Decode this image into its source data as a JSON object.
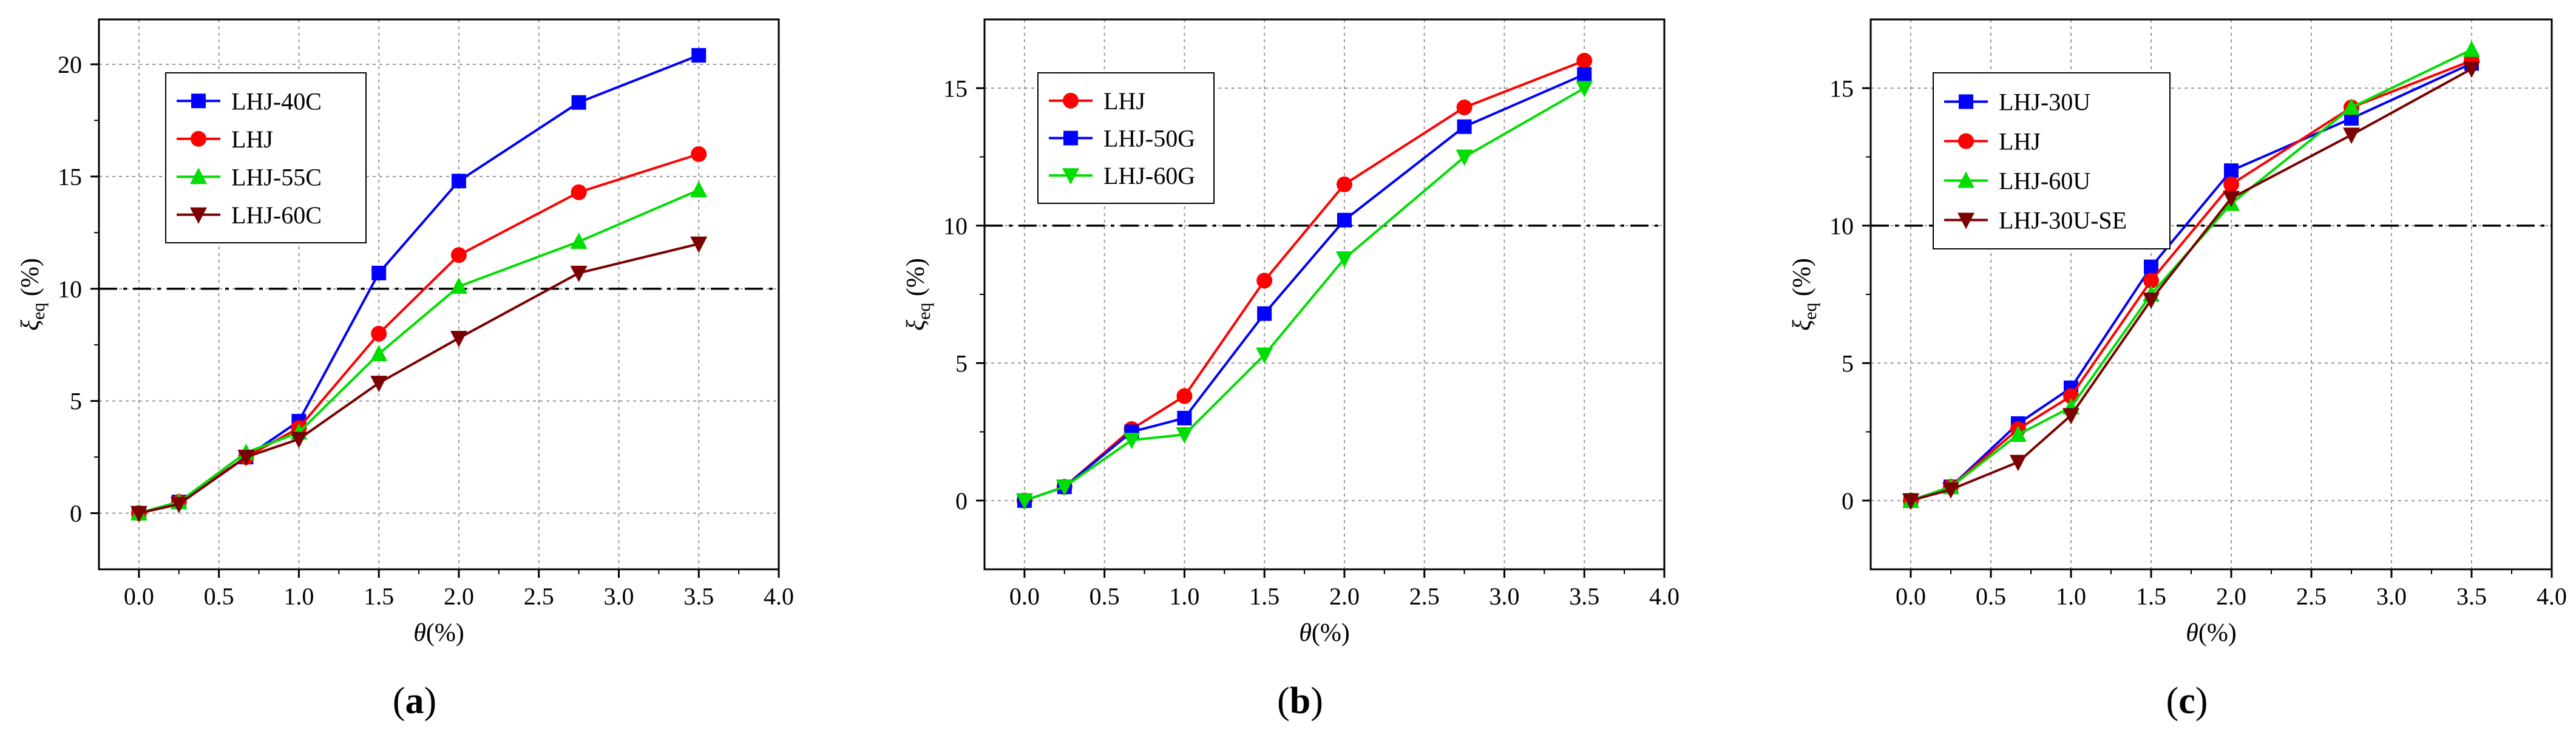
{
  "chart_data": [
    {
      "type": "line",
      "panel_label": "a",
      "xlabel": "θ(%)",
      "ylabel": "ξeq (%)",
      "xlim": [
        -0.25,
        4.0
      ],
      "ylim": [
        -2.5,
        22.0
      ],
      "xticks": [
        "0.0",
        "0.5",
        "1.0",
        "1.5",
        "2.0",
        "2.5",
        "3.0",
        "3.5",
        "4.0"
      ],
      "xtick_values": [
        0,
        0.5,
        1.0,
        1.5,
        2.0,
        2.5,
        3.0,
        3.5,
        4.0
      ],
      "yticks": [
        "0",
        "5",
        "10",
        "15",
        "20"
      ],
      "ytick_values": [
        0,
        5,
        10,
        15,
        20
      ],
      "grid": true,
      "reference_line": 10,
      "legend_position": "top-left",
      "x": [
        0.0,
        0.25,
        0.67,
        1.0,
        1.5,
        2.0,
        2.75,
        3.5
      ],
      "series": [
        {
          "name": "LHJ-40C",
          "color": "#0000ff",
          "marker": "square",
          "values": [
            0.0,
            0.5,
            2.5,
            4.1,
            10.7,
            14.8,
            18.3,
            20.4
          ]
        },
        {
          "name": "LHJ",
          "color": "#ff0000",
          "marker": "circle",
          "values": [
            0.0,
            0.5,
            2.5,
            3.8,
            8.0,
            11.5,
            14.3,
            16.0
          ]
        },
        {
          "name": "LHJ-55C",
          "color": "#00dd00",
          "marker": "triangle-up",
          "values": [
            0.0,
            0.5,
            2.7,
            3.6,
            7.1,
            10.1,
            12.1,
            14.4
          ]
        },
        {
          "name": "LHJ-60C",
          "color": "#7b0000",
          "marker": "triangle-down",
          "values": [
            0.0,
            0.4,
            2.5,
            3.3,
            5.8,
            7.8,
            10.7,
            12.0
          ]
        }
      ]
    },
    {
      "type": "line",
      "panel_label": "b",
      "xlabel": "θ(%)",
      "ylabel": "ξeq (%)",
      "xlim": [
        -0.25,
        4.0
      ],
      "ylim": [
        -2.5,
        17.5
      ],
      "xticks": [
        "0.0",
        "0.5",
        "1.0",
        "1.5",
        "2.0",
        "2.5",
        "3.0",
        "3.5",
        "4.0"
      ],
      "xtick_values": [
        0,
        0.5,
        1.0,
        1.5,
        2.0,
        2.5,
        3.0,
        3.5,
        4.0
      ],
      "yticks": [
        "0",
        "5",
        "10",
        "15"
      ],
      "ytick_values": [
        0,
        5,
        10,
        15
      ],
      "grid": true,
      "reference_line": 10,
      "legend_position": "top-left",
      "x": [
        0.0,
        0.25,
        0.67,
        1.0,
        1.5,
        2.0,
        2.75,
        3.5
      ],
      "series": [
        {
          "name": "LHJ",
          "color": "#ff0000",
          "marker": "circle",
          "values": [
            0.0,
            0.5,
            2.6,
            3.8,
            8.0,
            11.5,
            14.3,
            16.0
          ]
        },
        {
          "name": "LHJ-50G",
          "color": "#0000ff",
          "marker": "square",
          "values": [
            0.0,
            0.5,
            2.5,
            3.0,
            6.8,
            10.2,
            13.6,
            15.5
          ]
        },
        {
          "name": "LHJ-60G",
          "color": "#00dd00",
          "marker": "triangle-down",
          "values": [
            0.0,
            0.5,
            2.2,
            2.4,
            5.3,
            8.8,
            12.5,
            15.0
          ]
        }
      ]
    },
    {
      "type": "line",
      "panel_label": "c",
      "xlabel": "θ(%)",
      "ylabel": "ξeq (%)",
      "xlim": [
        -0.25,
        4.0
      ],
      "ylim": [
        -2.5,
        17.5
      ],
      "xticks": [
        "0.0",
        "0.5",
        "1.0",
        "1.5",
        "2.0",
        "2.5",
        "3.0",
        "3.5",
        "4.0"
      ],
      "xtick_values": [
        0,
        0.5,
        1.0,
        1.5,
        2.0,
        2.5,
        3.0,
        3.5,
        4.0
      ],
      "yticks": [
        "0",
        "5",
        "10",
        "15"
      ],
      "ytick_values": [
        0,
        5,
        10,
        15
      ],
      "grid": true,
      "reference_line": 10,
      "legend_position": "top-left",
      "x": [
        0.0,
        0.25,
        0.67,
        1.0,
        1.5,
        2.0,
        2.75,
        3.5
      ],
      "series": [
        {
          "name": "LHJ-30U",
          "color": "#0000ff",
          "marker": "square",
          "values": [
            0.0,
            0.5,
            2.8,
            4.1,
            8.5,
            12.0,
            13.9,
            15.9
          ]
        },
        {
          "name": "LHJ",
          "color": "#ff0000",
          "marker": "circle",
          "values": [
            0.0,
            0.5,
            2.6,
            3.8,
            8.0,
            11.5,
            14.3,
            16.0
          ]
        },
        {
          "name": "LHJ-60U",
          "color": "#00dd00",
          "marker": "triangle-up",
          "values": [
            0.0,
            0.5,
            2.4,
            3.4,
            7.5,
            10.8,
            14.3,
            16.4
          ]
        },
        {
          "name": "LHJ-30U-SE",
          "color": "#7b0000",
          "marker": "triangle-down",
          "values": [
            0.0,
            0.4,
            1.4,
            3.1,
            7.3,
            11.0,
            13.3,
            15.7
          ]
        }
      ]
    }
  ]
}
